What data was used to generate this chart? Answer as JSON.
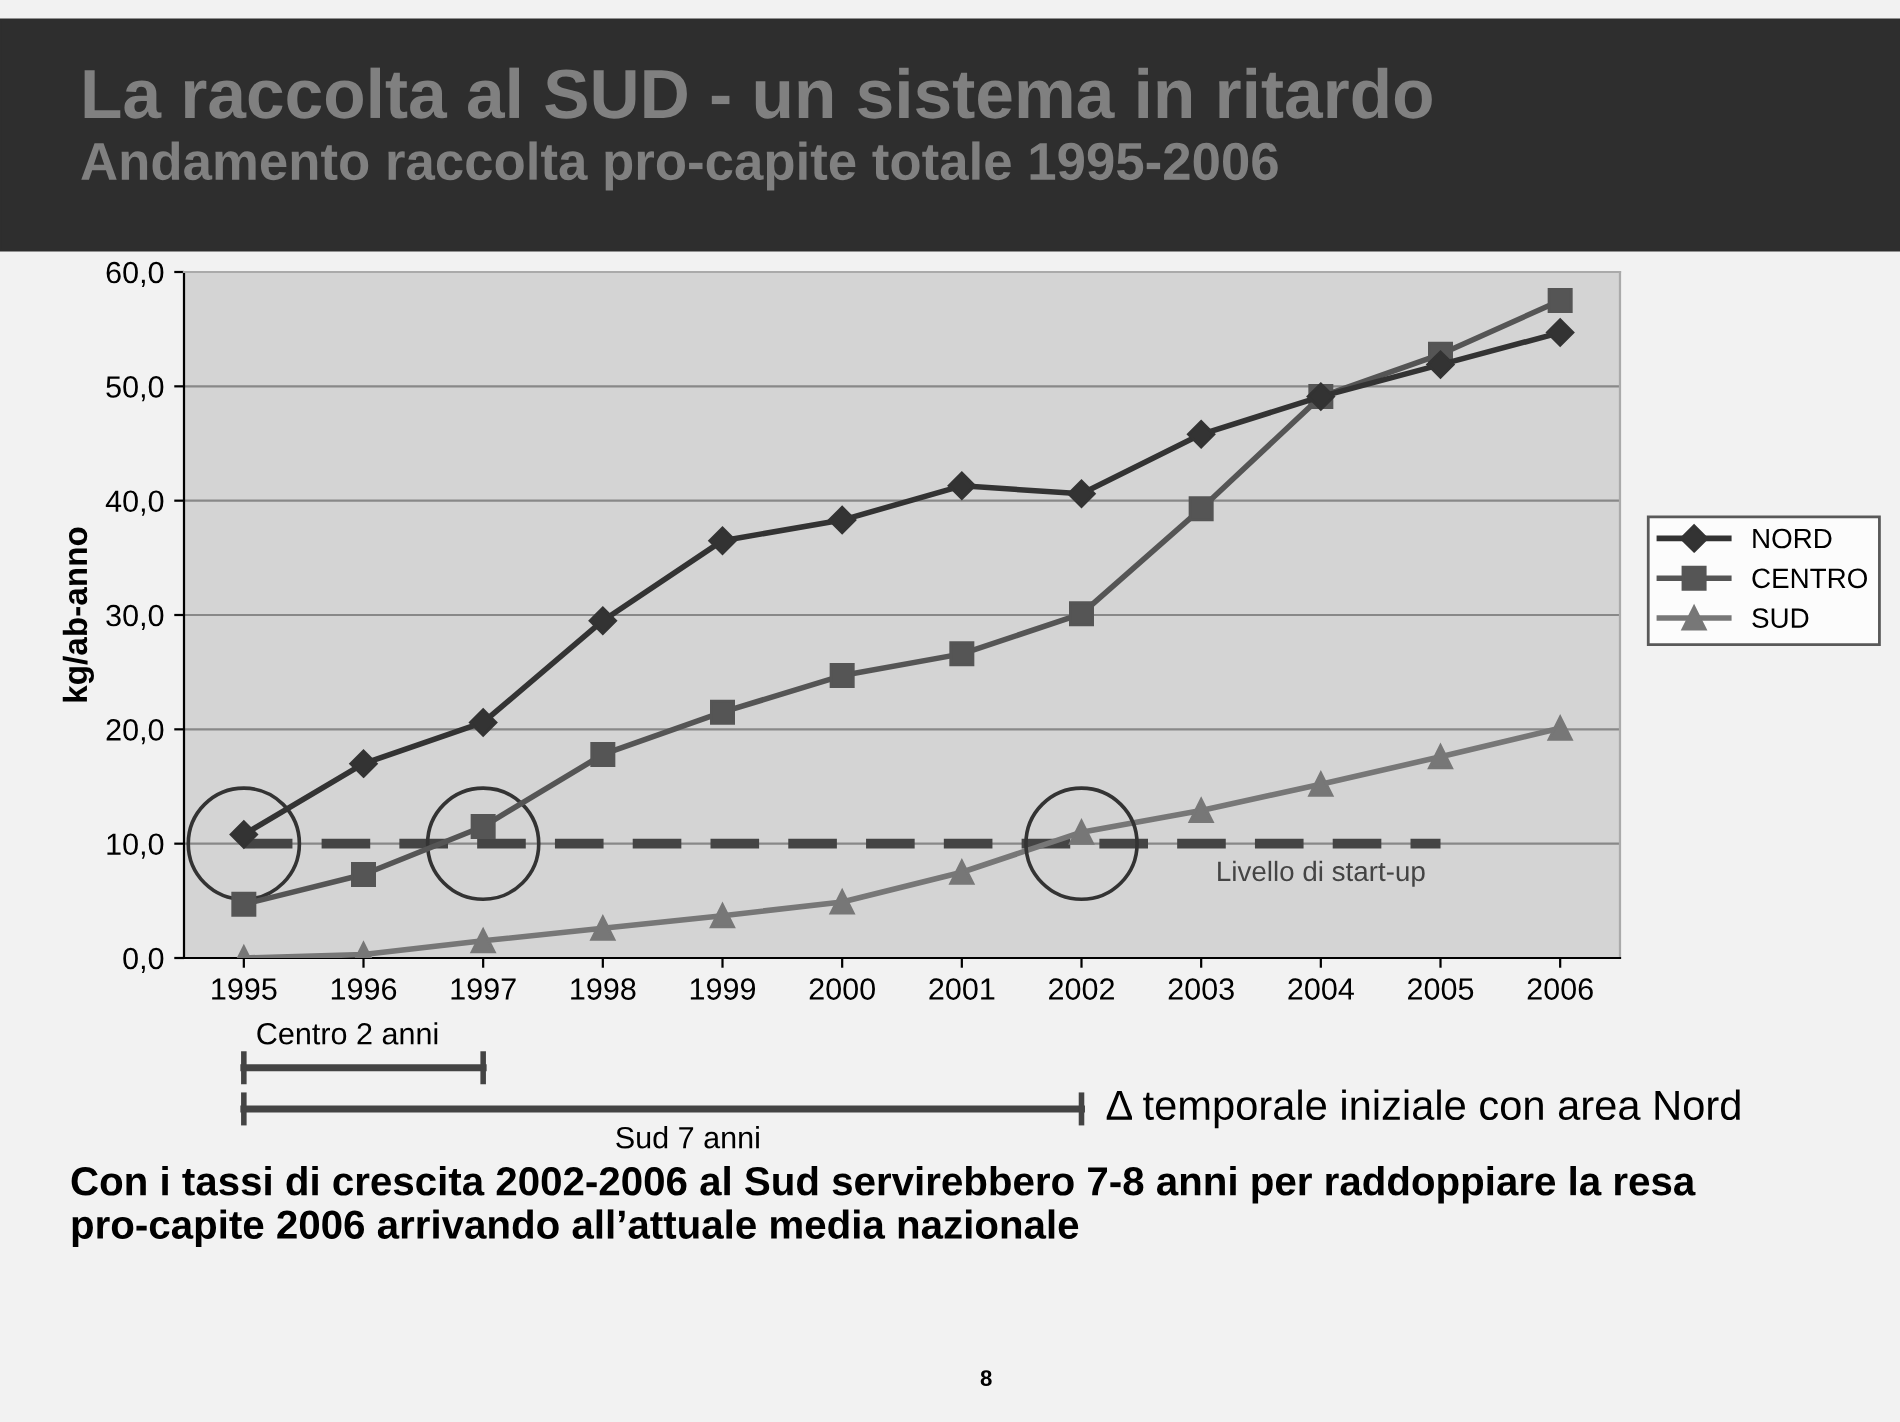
{
  "chart_data": {
    "type": "line",
    "title": "La raccolta al SUD - un sistema in ritardo",
    "subtitle": "Andamento raccolta pro-capite totale 1995-2006",
    "ylabel": "kg/ab-anno",
    "categories": [
      "1995",
      "1996",
      "1997",
      "1998",
      "1999",
      "2000",
      "2001",
      "2002",
      "2003",
      "2004",
      "2005",
      "2006"
    ],
    "series": [
      {
        "name": "NORD",
        "color": "#333333",
        "marker": "diamond",
        "values": [
          10.8,
          17.0,
          20.6,
          29.5,
          36.5,
          38.3,
          41.3,
          40.6,
          45.8,
          49.1,
          51.9,
          54.7
        ]
      },
      {
        "name": "CENTRO",
        "color": "#555555",
        "marker": "square",
        "values": [
          4.7,
          7.3,
          11.5,
          17.8,
          21.5,
          24.7,
          26.6,
          30.1,
          39.3,
          49.1,
          52.8,
          57.5
        ]
      },
      {
        "name": "SUD",
        "color": "#777777",
        "marker": "triangle",
        "values": [
          0.0,
          0.3,
          1.5,
          2.6,
          3.7,
          4.9,
          7.5,
          11.0,
          12.9,
          15.2,
          17.6,
          20.1
        ]
      }
    ],
    "ylim": [
      0,
      60
    ],
    "yticks": [
      {
        "value": 0,
        "label": "0,0"
      },
      {
        "value": 10,
        "label": "10,0"
      },
      {
        "value": 20,
        "label": "20,0"
      },
      {
        "value": 30,
        "label": "30,0"
      },
      {
        "value": 40,
        "label": "40,0"
      },
      {
        "value": 50,
        "label": "50,0"
      },
      {
        "value": 60,
        "label": "60,0"
      }
    ],
    "ref_lines": [
      {
        "axis": "y",
        "value": 10,
        "label": "Livello di start-up",
        "color": "#444444",
        "line_style": "dashed"
      }
    ],
    "annotations": [
      "Centro 2 anni",
      "Sud 7 anni",
      "Δ temporale iniziale con area Nord",
      "Con i tassi di crescita 2002-2006 al Sud servirebbero 7-8 anni per raddoppiare la resa pro-capite 2006 arrivando all’attuale media nazionale",
      "8"
    ],
    "grid": "y",
    "legend": "right",
    "line_style": "solid"
  }
}
